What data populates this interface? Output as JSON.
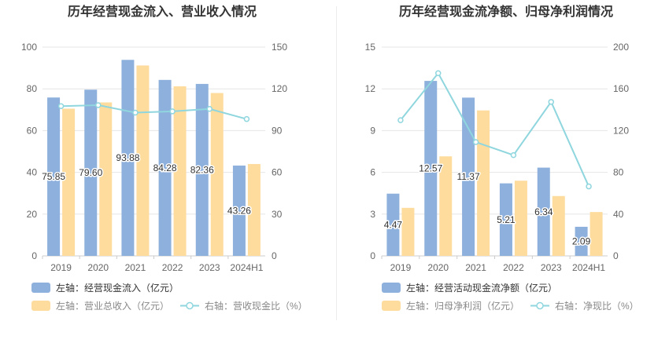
{
  "colors": {
    "blue": "#8eb0dc",
    "orange": "#fedc9e",
    "line": "#8fd6de",
    "axis_text": "#666666",
    "grid": "#e6e6e6",
    "title": "#333333"
  },
  "chart_data": [
    {
      "type": "bar",
      "title": "历年经营现金流入、营业收入情况",
      "categories": [
        "2019",
        "2020",
        "2021",
        "2022",
        "2023",
        "2024H1"
      ],
      "y_left": {
        "ticks": [
          "0",
          "20",
          "40",
          "60",
          "80",
          "100"
        ],
        "ylim": [
          0,
          100
        ]
      },
      "y_right": {
        "ticks": [
          "0",
          "30",
          "60",
          "90",
          "120",
          "150"
        ],
        "ylim": [
          0,
          150
        ]
      },
      "series": [
        {
          "name": "左轴：经营现金流入（亿元）",
          "type": "bar",
          "axis": "left",
          "color": "#8eb0dc",
          "values": [
            75.85,
            79.6,
            93.88,
            84.28,
            82.36,
            43.26
          ],
          "labels": [
            "75.85",
            "79.60",
            "93.88",
            "84.28",
            "82.36",
            "43.26"
          ]
        },
        {
          "name": "左轴：营业总收入（亿元）",
          "type": "bar",
          "axis": "left",
          "color": "#fedc9e",
          "values": [
            70.5,
            73.5,
            91.2,
            81.2,
            78.0,
            44.0
          ]
        },
        {
          "name": "右轴：营收现金比（%）",
          "type": "line",
          "axis": "right",
          "color": "#8fd6de",
          "values": [
            107.6,
            108.3,
            102.9,
            103.8,
            105.6,
            98.3
          ]
        }
      ],
      "legend": [
        "左轴：经营现金流入（亿元）",
        "左轴：营业总收入（亿元）",
        "右轴：营收现金比（%）"
      ]
    },
    {
      "type": "bar",
      "title": "历年经营现金流净额、归母净利润情况",
      "categories": [
        "2019",
        "2020",
        "2021",
        "2022",
        "2023",
        "2024H1"
      ],
      "y_left": {
        "ticks": [
          "0",
          "3",
          "6",
          "9",
          "12",
          "15"
        ],
        "ylim": [
          0,
          15
        ]
      },
      "y_right": {
        "ticks": [
          "0",
          "40",
          "80",
          "120",
          "160",
          "200"
        ],
        "ylim": [
          0,
          200
        ]
      },
      "series": [
        {
          "name": "左轴：经营活动现金流净额（亿元）",
          "type": "bar",
          "axis": "left",
          "color": "#8eb0dc",
          "values": [
            4.47,
            12.57,
            11.37,
            5.21,
            6.34,
            2.09
          ],
          "labels": [
            "4.47",
            "12.57",
            "11.37",
            "5.21",
            "6.34",
            "2.09"
          ]
        },
        {
          "name": "左轴：归母净利润（亿元）",
          "type": "bar",
          "axis": "left",
          "color": "#fedc9e",
          "values": [
            3.45,
            7.15,
            10.45,
            5.4,
            4.3,
            3.15
          ]
        },
        {
          "name": "右轴：净现比（%）",
          "type": "line",
          "axis": "right",
          "color": "#8fd6de",
          "values": [
            130.0,
            175.0,
            109.0,
            96.5,
            147.5,
            66.5
          ]
        }
      ],
      "legend": [
        "左轴：经营活动现金流净额（亿元）",
        "左轴：归母净利润（亿元）",
        "右轴：净现比（%）"
      ]
    }
  ]
}
